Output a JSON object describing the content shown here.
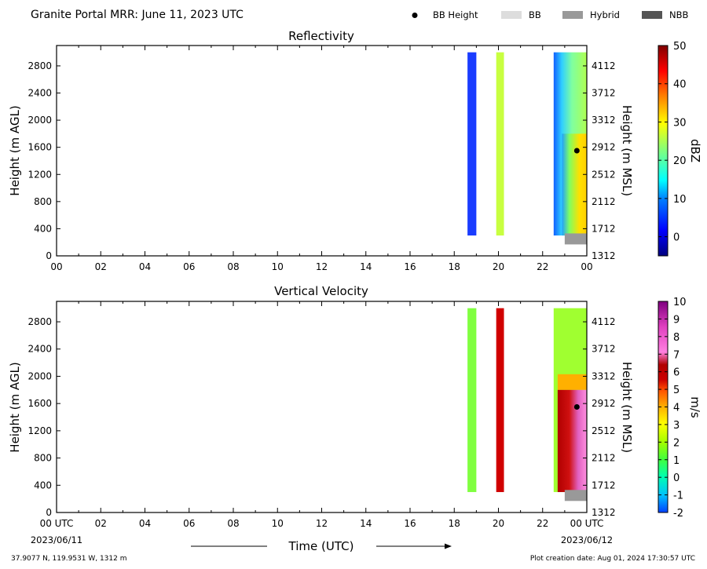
{
  "header": {
    "title": "Granite Portal MRR:  June 11, 2023 UTC",
    "legend": [
      {
        "label": "BB Height",
        "kind": "dot",
        "color": "#000000"
      },
      {
        "label": "BB",
        "kind": "swatch",
        "color": "#dddddd"
      },
      {
        "label": "Hybrid",
        "kind": "swatch",
        "color": "#999999"
      },
      {
        "label": "NBB",
        "kind": "swatch",
        "color": "#555555"
      }
    ]
  },
  "footer": {
    "location": "37.9077 N, 119.9531 W, 1312 m",
    "creation": "Plot creation date: Aug 01, 2024 17:30:57 UTC",
    "xlabel": "Time (UTC)",
    "start_date": "2023/06/11",
    "end_date": "2023/06/12"
  },
  "chart_data": [
    {
      "type": "heatmap",
      "title": "Reflectivity",
      "ylabel_left": "Height (m AGL)",
      "ylabel_right": "Height (m MSL)",
      "x_ticks": [
        "00",
        "02",
        "04",
        "06",
        "08",
        "10",
        "12",
        "14",
        "16",
        "18",
        "20",
        "22",
        "00"
      ],
      "y_ticks_left": [
        "0",
        "400",
        "800",
        "1200",
        "1600",
        "2000",
        "2400",
        "2800"
      ],
      "y_ticks_right": [
        "1312",
        "1712",
        "2112",
        "2512",
        "2912",
        "3312",
        "3712",
        "4112"
      ],
      "xlim": [
        0,
        24
      ],
      "ylim": [
        0,
        3100
      ],
      "colorbar": {
        "label": "dBZ",
        "range": [
          -5,
          50
        ],
        "ticks": [
          "0",
          "10",
          "20",
          "30",
          "40",
          "50"
        ],
        "tick_values": [
          0,
          10,
          20,
          30,
          40,
          50
        ],
        "colors": [
          "#00007f",
          "#0000ff",
          "#007fff",
          "#00ffff",
          "#7fff7f",
          "#ffff00",
          "#ff7f00",
          "#ff0000",
          "#7f0000"
        ]
      },
      "precip_periods": [
        {
          "start": 18.6,
          "end": 19.0,
          "top": 3000,
          "bottom": 300,
          "value": 2
        },
        {
          "start": 19.9,
          "end": 20.25,
          "top": 3000,
          "bottom": 300,
          "value": 22
        },
        {
          "start": 22.5,
          "end": 24.0,
          "top": 3000,
          "bottom": 300,
          "value": 18
        }
      ],
      "bb_height": [
        {
          "time": 23.55,
          "height": 1550
        }
      ],
      "bb_type": [
        {
          "start": 23.0,
          "end": 24.0,
          "type": "Hybrid"
        }
      ]
    },
    {
      "type": "heatmap",
      "title": "Vertical Velocity",
      "ylabel_left": "Height (m AGL)",
      "ylabel_right": "Height (m MSL)",
      "x_ticks": [
        "00 UTC",
        "02",
        "04",
        "06",
        "08",
        "10",
        "12",
        "14",
        "16",
        "18",
        "20",
        "22",
        "00 UTC"
      ],
      "y_ticks_left": [
        "0",
        "400",
        "800",
        "1200",
        "1600",
        "2000",
        "2400",
        "2800"
      ],
      "y_ticks_right": [
        "1312",
        "1712",
        "2112",
        "2512",
        "2912",
        "3312",
        "3712",
        "4112"
      ],
      "xlim": [
        0,
        24
      ],
      "ylim": [
        0,
        3100
      ],
      "colorbar": {
        "label": "m/s",
        "range": [
          -2,
          10
        ],
        "ticks": [
          "-2",
          "-1",
          "0",
          "1",
          "2",
          "3",
          "4",
          "5",
          "6",
          "7",
          "8",
          "9",
          "10"
        ],
        "tick_values": [
          -2,
          -1,
          0,
          1,
          2,
          3,
          4,
          5,
          6,
          7,
          8,
          9,
          10
        ],
        "colors": [
          "#0040ff",
          "#00c0ff",
          "#00ffb0",
          "#40ff40",
          "#a0ff00",
          "#ffff00",
          "#ffb000",
          "#ff5000",
          "#cc0000",
          "#b00000",
          "#ff80e0",
          "#e040c0",
          "#a000a0",
          "#800080"
        ]
      },
      "precip_periods": [
        {
          "start": 18.6,
          "end": 19.0,
          "top": 3000,
          "bottom": 300,
          "value": 2
        },
        {
          "start": 19.9,
          "end": 20.25,
          "top": 3000,
          "bottom": 300,
          "value": 6
        },
        {
          "start": 22.5,
          "end": 24.0,
          "top": 3000,
          "bottom": 300,
          "value": 2
        }
      ],
      "bb_height": [
        {
          "time": 23.55,
          "height": 1550
        }
      ],
      "bb_type": [
        {
          "start": 23.0,
          "end": 24.0,
          "type": "Hybrid"
        }
      ]
    }
  ]
}
